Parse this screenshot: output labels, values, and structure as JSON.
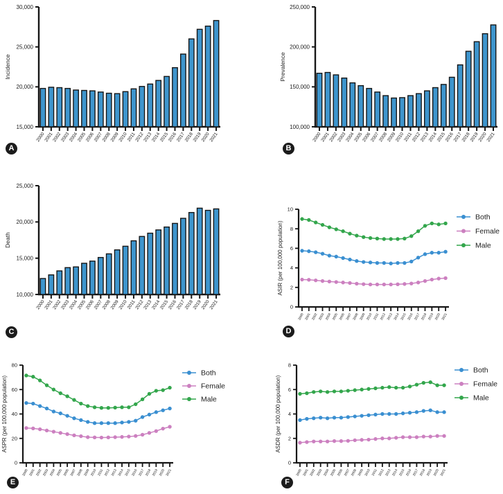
{
  "figure": {
    "description": "Six-panel epidemiology figure: incidence, prevalence, death counts and age-standardized rates 2000-2021"
  },
  "colors": {
    "bar_fill": "#3e95cd",
    "axis": "#161616",
    "text": "#222222",
    "both": "#3a8fd1",
    "female": "#cc80c0",
    "male": "#33a64c",
    "badge_bg": "#1c1c1c",
    "badge_text": "#ffffff"
  },
  "chart_data": [
    {
      "panel": "A",
      "type": "bar",
      "title": "",
      "xlabel": "",
      "ylabel": "Incidence",
      "ylim": [
        15000,
        30000
      ],
      "yticks": [
        15000,
        20000,
        25000,
        30000
      ],
      "categories": [
        "2000",
        "2001",
        "2002",
        "2003",
        "2004",
        "2005",
        "2006",
        "2007",
        "2008",
        "2009",
        "2010",
        "2011",
        "2012",
        "2013",
        "2014",
        "2015",
        "2016",
        "2017",
        "2018",
        "2019",
        "2020",
        "2021"
      ],
      "values": [
        19800,
        19950,
        19900,
        19800,
        19600,
        19550,
        19500,
        19350,
        19200,
        19150,
        19400,
        19750,
        20050,
        20350,
        20800,
        21300,
        22400,
        24100,
        26000,
        27200,
        27600,
        28300
      ]
    },
    {
      "panel": "B",
      "type": "bar",
      "title": "",
      "xlabel": "",
      "ylabel": "Prevalence",
      "ylim": [
        100000,
        250000
      ],
      "yticks": [
        100000,
        150000,
        200000,
        250000
      ],
      "categories": [
        "2000",
        "2001",
        "2002",
        "2003",
        "2004",
        "2005",
        "2006",
        "2007",
        "2008",
        "2009",
        "2010",
        "2011",
        "2012",
        "2013",
        "2014",
        "2015",
        "2016",
        "2017",
        "2018",
        "2019",
        "2020",
        "2021"
      ],
      "values": [
        167000,
        168000,
        165000,
        161000,
        155000,
        151500,
        148000,
        143500,
        139000,
        136000,
        136500,
        139000,
        141500,
        145000,
        149000,
        153000,
        162000,
        177500,
        194500,
        206500,
        216500,
        227500
      ]
    },
    {
      "panel": "C",
      "type": "bar",
      "title": "",
      "xlabel": "",
      "ylabel": "Death",
      "ylim": [
        10000,
        25000
      ],
      "yticks": [
        10000,
        15000,
        20000,
        25000
      ],
      "categories": [
        "2000",
        "2001",
        "2002",
        "2003",
        "2004",
        "2005",
        "2006",
        "2007",
        "2008",
        "2009",
        "2010",
        "2011",
        "2012",
        "2013",
        "2014",
        "2015",
        "2016",
        "2017",
        "2018",
        "2019",
        "2020",
        "2021"
      ],
      "values": [
        12200,
        12700,
        13250,
        13700,
        13800,
        14300,
        14600,
        15100,
        15600,
        16150,
        16650,
        17400,
        18000,
        18450,
        18900,
        19300,
        19800,
        20500,
        21300,
        21900,
        21600,
        21800
      ]
    },
    {
      "panel": "D",
      "type": "line",
      "title": "",
      "xlabel": "",
      "ylabel": "ASIR (per 100,000 population)",
      "ylim": [
        0,
        10
      ],
      "yticks": [
        0,
        2,
        4,
        6,
        8,
        10
      ],
      "legend_position": "right",
      "categories": [
        "2000",
        "2001",
        "2002",
        "2003",
        "2004",
        "2005",
        "2006",
        "2007",
        "2008",
        "2009",
        "2010",
        "2011",
        "2012",
        "2013",
        "2014",
        "2015",
        "2016",
        "2017",
        "2018",
        "2019",
        "2020",
        "2021"
      ],
      "series": [
        {
          "name": "Both",
          "color": "#3a8fd1",
          "values": [
            5.75,
            5.7,
            5.6,
            5.45,
            5.25,
            5.15,
            5.0,
            4.85,
            4.7,
            4.6,
            4.55,
            4.5,
            4.5,
            4.45,
            4.5,
            4.5,
            4.65,
            5.05,
            5.4,
            5.55,
            5.55,
            5.65
          ]
        },
        {
          "name": "Female",
          "color": "#cc80c0",
          "values": [
            2.8,
            2.78,
            2.72,
            2.65,
            2.6,
            2.55,
            2.5,
            2.45,
            2.38,
            2.33,
            2.3,
            2.3,
            2.3,
            2.3,
            2.32,
            2.35,
            2.4,
            2.5,
            2.65,
            2.8,
            2.9,
            2.95
          ]
        },
        {
          "name": "Male",
          "color": "#33a64c",
          "values": [
            9.0,
            8.9,
            8.65,
            8.4,
            8.15,
            7.95,
            7.75,
            7.5,
            7.3,
            7.15,
            7.05,
            7.0,
            6.95,
            6.95,
            6.95,
            7.0,
            7.25,
            7.75,
            8.3,
            8.55,
            8.45,
            8.55
          ]
        }
      ]
    },
    {
      "panel": "E",
      "type": "line",
      "title": "",
      "xlabel": "",
      "ylabel": "ASPR (per 100,000 population)",
      "ylim": [
        0,
        80
      ],
      "yticks": [
        0,
        20,
        40,
        60,
        80
      ],
      "legend_position": "right",
      "categories": [
        "2000",
        "2001",
        "2002",
        "2003",
        "2004",
        "2005",
        "2006",
        "2007",
        "2008",
        "2009",
        "2010",
        "2011",
        "2012",
        "2013",
        "2014",
        "2015",
        "2016",
        "2017",
        "2018",
        "2019",
        "2020",
        "2021"
      ],
      "series": [
        {
          "name": "Both",
          "color": "#3a8fd1",
          "values": [
            49,
            48.5,
            46.5,
            44.5,
            42,
            40.5,
            38.5,
            36.5,
            35,
            33.5,
            32.5,
            32.5,
            32.5,
            32.5,
            33,
            33.5,
            34.5,
            37.5,
            39.5,
            41.5,
            43,
            44.5
          ]
        },
        {
          "name": "Female",
          "color": "#cc80c0",
          "values": [
            28.5,
            28.2,
            27.5,
            26.5,
            25.5,
            24.5,
            23.5,
            22.5,
            21.8,
            21,
            20.8,
            20.7,
            20.8,
            21,
            21.2,
            21.5,
            22,
            23,
            24.5,
            26,
            28,
            29.5
          ]
        },
        {
          "name": "Male",
          "color": "#33a64c",
          "values": [
            71.5,
            70.5,
            67.5,
            63.5,
            60,
            57,
            54.5,
            51.5,
            48.5,
            46.5,
            45.5,
            45,
            45,
            45.2,
            45.5,
            45.5,
            48,
            52,
            56.5,
            59,
            59.5,
            61.5
          ]
        }
      ]
    },
    {
      "panel": "F",
      "type": "line",
      "title": "",
      "xlabel": "",
      "ylabel": "ASDR (per 100,000 population)",
      "ylim": [
        0,
        8
      ],
      "yticks": [
        0,
        2,
        4,
        6,
        8
      ],
      "legend_position": "right",
      "categories": [
        "2000",
        "2001",
        "2002",
        "2003",
        "2004",
        "2005",
        "2006",
        "2007",
        "2008",
        "2009",
        "2010",
        "2011",
        "2012",
        "2013",
        "2014",
        "2015",
        "2016",
        "2017",
        "2018",
        "2019",
        "2020",
        "2021"
      ],
      "series": [
        {
          "name": "Both",
          "color": "#3a8fd1",
          "values": [
            3.5,
            3.6,
            3.65,
            3.7,
            3.65,
            3.7,
            3.7,
            3.75,
            3.8,
            3.85,
            3.9,
            3.95,
            4.0,
            4.0,
            4.0,
            4.05,
            4.1,
            4.15,
            4.25,
            4.3,
            4.15,
            4.15
          ]
        },
        {
          "name": "Female",
          "color": "#cc80c0",
          "values": [
            1.65,
            1.7,
            1.75,
            1.75,
            1.75,
            1.78,
            1.78,
            1.8,
            1.85,
            1.88,
            1.9,
            1.95,
            2.0,
            2.0,
            2.05,
            2.1,
            2.1,
            2.1,
            2.15,
            2.15,
            2.2,
            2.2
          ]
        },
        {
          "name": "Male",
          "color": "#33a64c",
          "values": [
            5.65,
            5.7,
            5.8,
            5.85,
            5.8,
            5.85,
            5.85,
            5.9,
            5.95,
            6.0,
            6.05,
            6.1,
            6.15,
            6.2,
            6.15,
            6.15,
            6.25,
            6.4,
            6.55,
            6.6,
            6.35,
            6.35
          ]
        }
      ]
    }
  ]
}
